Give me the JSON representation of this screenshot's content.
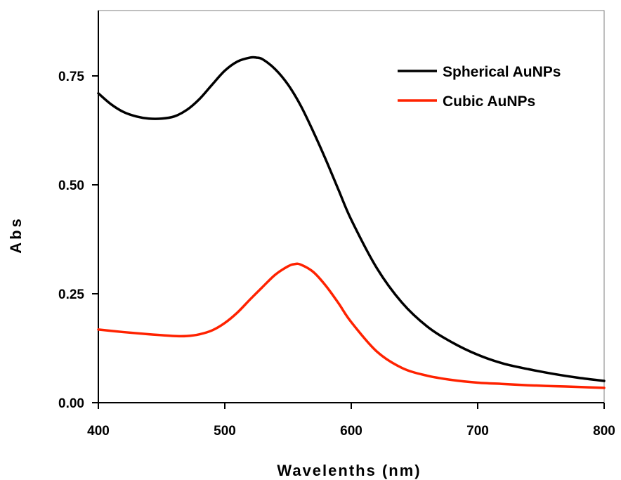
{
  "chart_data": {
    "type": "line",
    "title": "",
    "xlabel": "Wavelenths (nm)",
    "ylabel": "Abs",
    "xlim": [
      400,
      800
    ],
    "ylim": [
      0,
      0.9
    ],
    "xticks": [
      400,
      500,
      600,
      700,
      800
    ],
    "xtick_labels": [
      "400",
      "500",
      "600",
      "700",
      "800"
    ],
    "yticks": [
      0,
      0.25,
      0.5,
      0.75
    ],
    "ytick_labels": [
      "0.00",
      "0.25",
      "0.50",
      "0.75"
    ],
    "grid": false,
    "legend_position": "top-right",
    "series": [
      {
        "name": "Spherical AuNPs",
        "color": "#000000",
        "x": [
          400,
          410,
          420,
          430,
          440,
          450,
          460,
          470,
          480,
          490,
          500,
          510,
          520,
          525,
          530,
          540,
          550,
          560,
          570,
          580,
          590,
          600,
          620,
          640,
          660,
          680,
          700,
          720,
          740,
          760,
          780,
          800
        ],
        "y": [
          0.71,
          0.685,
          0.667,
          0.657,
          0.652,
          0.652,
          0.657,
          0.672,
          0.697,
          0.73,
          0.762,
          0.783,
          0.792,
          0.792,
          0.788,
          0.765,
          0.73,
          0.682,
          0.622,
          0.557,
          0.488,
          0.42,
          0.31,
          0.23,
          0.175,
          0.138,
          0.11,
          0.09,
          0.077,
          0.066,
          0.057,
          0.05
        ]
      },
      {
        "name": "Cubic AuNPs",
        "color": "#ff2200",
        "x": [
          400,
          420,
          440,
          460,
          470,
          480,
          490,
          500,
          510,
          520,
          530,
          540,
          550,
          555,
          560,
          570,
          580,
          590,
          600,
          620,
          640,
          660,
          680,
          700,
          720,
          740,
          760,
          780,
          800
        ],
        "y": [
          0.168,
          0.162,
          0.157,
          0.153,
          0.153,
          0.157,
          0.166,
          0.183,
          0.207,
          0.237,
          0.266,
          0.294,
          0.313,
          0.318,
          0.317,
          0.3,
          0.268,
          0.228,
          0.185,
          0.118,
          0.08,
          0.062,
          0.052,
          0.046,
          0.043,
          0.04,
          0.038,
          0.036,
          0.034
        ]
      }
    ]
  }
}
